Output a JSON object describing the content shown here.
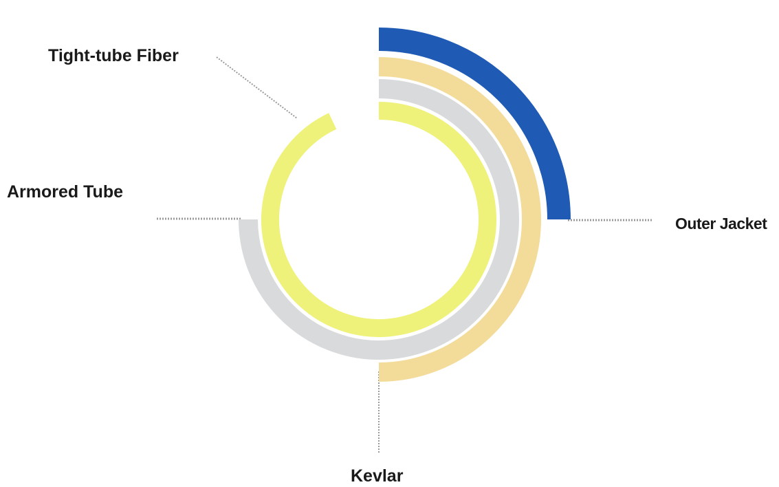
{
  "labels": {
    "tight_tube_fiber": "Tight-tube Fiber",
    "armored_tube": "Armored Tube",
    "outer_jacket": "Outer Jacket",
    "kevlar": "Kevlar"
  },
  "layers": [
    {
      "key": "tight_tube_fiber",
      "color": "#eef27a",
      "fraction": 0.93
    },
    {
      "key": "armored_tube",
      "color": "#d9dadc",
      "fraction": 0.75
    },
    {
      "key": "kevlar",
      "color": "#f3db9a",
      "fraction": 0.5
    },
    {
      "key": "outer_jacket",
      "color": "#1f5bb5",
      "fraction": 0.25
    }
  ],
  "leader_color": "#9a9a9a"
}
